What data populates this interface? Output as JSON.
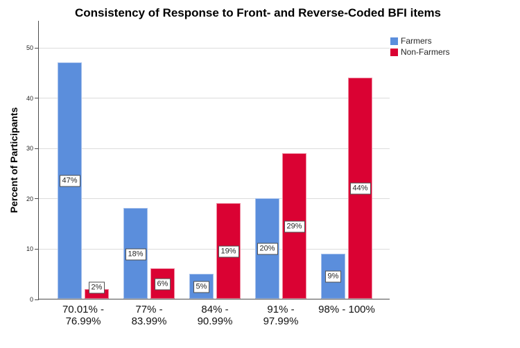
{
  "title": "Consistency of Response to Front- and Reverse-Coded BFI items",
  "chart_data": {
    "type": "bar",
    "title": "Consistency of Response to Front- and Reverse-Coded BFI items",
    "xlabel": "",
    "ylabel": "Percent of Participants",
    "categories": [
      "70.01% -\n76.99%",
      "77% -\n83.99%",
      "84% -\n90.99%",
      "91% -\n97.99%",
      "98% - 100%"
    ],
    "series": [
      {
        "name": "Farmers",
        "color": "#5B8EDC",
        "edge_color": "#A6C1EC",
        "values": [
          47,
          18,
          5,
          20,
          9
        ],
        "labels": [
          "47%",
          "18%",
          "5%",
          "20%",
          "9%"
        ]
      },
      {
        "name": "Non-Farmers",
        "color": "#DA0233",
        "edge_color": "#EE8AA0",
        "values": [
          2,
          6,
          19,
          29,
          44
        ],
        "labels": [
          "2%",
          "6%",
          "19%",
          "29%",
          "44%"
        ]
      }
    ],
    "y_ticks": [
      0,
      10,
      20,
      30,
      40,
      50
    ],
    "ylim": [
      0,
      55.4
    ],
    "grid": true,
    "legend_position": "top-right",
    "bar_value_labels_boxed": true
  }
}
